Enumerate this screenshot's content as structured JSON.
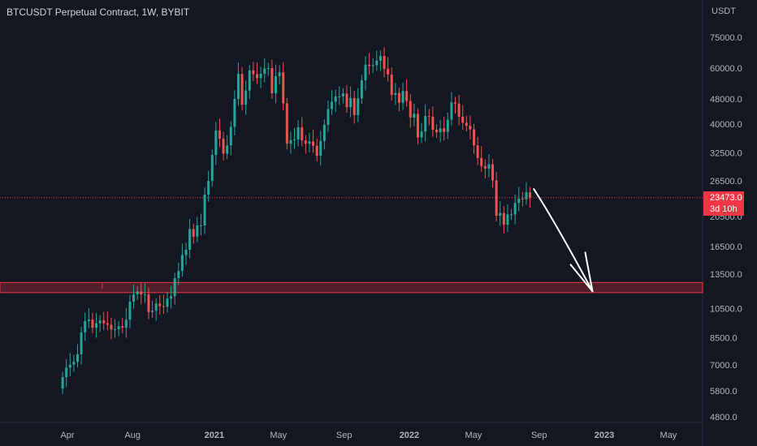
{
  "header": {
    "title": "BTCUSDT Perpetual Contract, 1W, BYBIT"
  },
  "axis": {
    "unit": "USDT"
  },
  "last_price": {
    "value": "23473.0",
    "countdown": "3d 10h"
  },
  "colors": {
    "background": "#131722",
    "up": "#26a69a",
    "down": "#ef5350",
    "zone": "#f23645",
    "badge": "#f23645"
  },
  "chart_data": {
    "type": "candlestick",
    "title": "BTCUSDT Perpetual Contract, 1W, BYBIT",
    "timeframe": "1W",
    "exchange": "BYBIT",
    "y_scale": "log",
    "ylim": [
      4400,
      85000
    ],
    "y_ticks": [
      "75000.0",
      "60000.0",
      "48000.0",
      "40000.0",
      "32500.0",
      "26500.0",
      "20500.0",
      "16500.0",
      "13500.0",
      "10500.0",
      "8500.0",
      "7000.0",
      "5800.0",
      "4800.0"
    ],
    "x_ticks": [
      "Apr",
      "Aug",
      "2021",
      "May",
      "Sep",
      "2022",
      "May",
      "Sep",
      "2023",
      "May"
    ],
    "x_range": [
      "2020-02-25",
      "2023-07-15"
    ],
    "weekly_closes": [
      [
        "2020-03-23",
        6400
      ],
      [
        "2020-03-30",
        6850
      ],
      [
        "2020-04-06",
        7000
      ],
      [
        "2020-04-13",
        7150
      ],
      [
        "2020-04-20",
        7550
      ],
      [
        "2020-04-27",
        8850
      ],
      [
        "2020-05-04",
        9600
      ],
      [
        "2020-05-11",
        9700
      ],
      [
        "2020-05-18",
        9150
      ],
      [
        "2020-05-25",
        9450
      ],
      [
        "2020-06-01",
        9650
      ],
      [
        "2020-06-08",
        9450
      ],
      [
        "2020-06-15",
        9350
      ],
      [
        "2020-06-22",
        9050
      ],
      [
        "2020-06-29",
        9050
      ],
      [
        "2020-07-06",
        9250
      ],
      [
        "2020-07-13",
        9150
      ],
      [
        "2020-07-20",
        9700
      ],
      [
        "2020-07-27",
        11050
      ],
      [
        "2020-08-03",
        11650
      ],
      [
        "2020-08-10",
        11900
      ],
      [
        "2020-08-17",
        11650
      ],
      [
        "2020-08-24",
        11650
      ],
      [
        "2020-08-31",
        10250
      ],
      [
        "2020-09-07",
        10350
      ],
      [
        "2020-09-14",
        10900
      ],
      [
        "2020-09-21",
        10700
      ],
      [
        "2020-09-28",
        10650
      ],
      [
        "2020-10-05",
        11300
      ],
      [
        "2020-10-12",
        11500
      ],
      [
        "2020-10-19",
        13100
      ],
      [
        "2020-10-26",
        13800
      ],
      [
        "2020-11-02",
        15500
      ],
      [
        "2020-11-09",
        16100
      ],
      [
        "2020-11-16",
        18700
      ],
      [
        "2020-11-23",
        17700
      ],
      [
        "2020-11-30",
        19200
      ],
      [
        "2020-12-07",
        19200
      ],
      [
        "2020-12-14",
        24000
      ],
      [
        "2020-12-21",
        26500
      ],
      [
        "2020-12-28",
        32000
      ],
      [
        "2021-01-04",
        38200
      ],
      [
        "2021-01-11",
        36000
      ],
      [
        "2021-01-18",
        32300
      ],
      [
        "2021-01-25",
        34300
      ],
      [
        "2021-02-01",
        39200
      ],
      [
        "2021-02-08",
        48000
      ],
      [
        "2021-02-15",
        57500
      ],
      [
        "2021-02-22",
        46000
      ],
      [
        "2021-03-01",
        51000
      ],
      [
        "2021-03-08",
        59000
      ],
      [
        "2021-03-15",
        57400
      ],
      [
        "2021-03-22",
        55800
      ],
      [
        "2021-03-29",
        57600
      ],
      [
        "2021-04-05",
        59800
      ],
      [
        "2021-04-12",
        60000
      ],
      [
        "2021-04-19",
        50000
      ],
      [
        "2021-04-26",
        56600
      ],
      [
        "2021-05-03",
        58200
      ],
      [
        "2021-05-10",
        46500
      ],
      [
        "2021-05-17",
        34700
      ],
      [
        "2021-05-24",
        35600
      ],
      [
        "2021-05-31",
        35800
      ],
      [
        "2021-06-07",
        39100
      ],
      [
        "2021-06-14",
        35500
      ],
      [
        "2021-06-21",
        34700
      ],
      [
        "2021-06-28",
        35300
      ],
      [
        "2021-07-05",
        34200
      ],
      [
        "2021-07-12",
        31800
      ],
      [
        "2021-07-19",
        35400
      ],
      [
        "2021-07-26",
        39800
      ],
      [
        "2021-08-02",
        44600
      ],
      [
        "2021-08-09",
        47000
      ],
      [
        "2021-08-16",
        48900
      ],
      [
        "2021-08-23",
        48900
      ],
      [
        "2021-08-30",
        49900
      ],
      [
        "2021-09-06",
        45200
      ],
      [
        "2021-09-13",
        48300
      ],
      [
        "2021-09-20",
        42700
      ],
      [
        "2021-09-27",
        48200
      ],
      [
        "2021-10-04",
        54900
      ],
      [
        "2021-10-11",
        61500
      ],
      [
        "2021-10-18",
        60900
      ],
      [
        "2021-10-25",
        61300
      ],
      [
        "2021-11-01",
        63300
      ],
      [
        "2021-11-08",
        65500
      ],
      [
        "2021-11-15",
        59700
      ],
      [
        "2021-11-22",
        57300
      ],
      [
        "2021-11-29",
        49400
      ],
      [
        "2021-12-06",
        50100
      ],
      [
        "2021-12-13",
        46700
      ],
      [
        "2021-12-20",
        50800
      ],
      [
        "2021-12-27",
        47300
      ],
      [
        "2022-01-03",
        41900
      ],
      [
        "2022-01-10",
        43100
      ],
      [
        "2022-01-17",
        36300
      ],
      [
        "2022-01-24",
        37900
      ],
      [
        "2022-01-31",
        42400
      ],
      [
        "2022-02-07",
        42200
      ],
      [
        "2022-02-14",
        38400
      ],
      [
        "2022-02-21",
        37700
      ],
      [
        "2022-02-28",
        38800
      ],
      [
        "2022-03-07",
        37800
      ],
      [
        "2022-03-14",
        41300
      ],
      [
        "2022-03-21",
        46800
      ],
      [
        "2022-03-28",
        46400
      ],
      [
        "2022-04-04",
        42200
      ],
      [
        "2022-04-11",
        40400
      ],
      [
        "2022-04-18",
        39500
      ],
      [
        "2022-04-25",
        38500
      ],
      [
        "2022-05-02",
        34300
      ],
      [
        "2022-05-09",
        31300
      ],
      [
        "2022-05-16",
        29500
      ],
      [
        "2022-05-23",
        29000
      ],
      [
        "2022-05-30",
        29900
      ],
      [
        "2022-06-06",
        26600
      ],
      [
        "2022-06-13",
        20600
      ],
      [
        "2022-06-20",
        21000
      ],
      [
        "2022-06-27",
        19300
      ],
      [
        "2022-07-04",
        20800
      ],
      [
        "2022-07-11",
        20800
      ],
      [
        "2022-07-18",
        22600
      ],
      [
        "2022-07-25",
        23300
      ],
      [
        "2022-08-01",
        23200
      ],
      [
        "2022-08-08",
        24400
      ],
      [
        "2022-08-15",
        23473
      ]
    ],
    "horizontal_line": {
      "price": 23473.0,
      "style": "dotted"
    },
    "zone": {
      "low": 11800,
      "high": 12700,
      "start": "2020-02-25"
    },
    "annotation": {
      "type": "arrow",
      "from": [
        "2022-08-22",
        25000
      ],
      "to": [
        "2022-12-10",
        11900
      ],
      "color": "#ffffff"
    }
  }
}
